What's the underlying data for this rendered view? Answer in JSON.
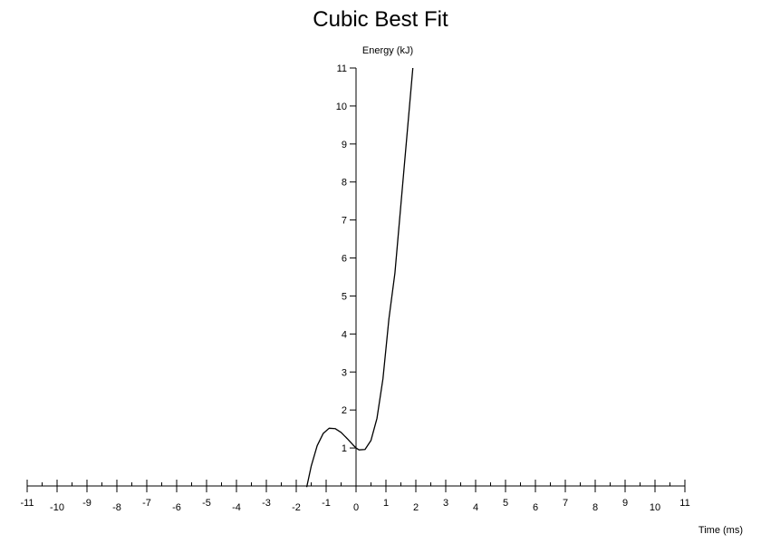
{
  "chart_data": {
    "type": "line",
    "title": "Cubic Best Fit",
    "xlabel": "Time (ms)",
    "ylabel": "Energy (kJ)",
    "xlim": [
      -11,
      11
    ],
    "ylim": [
      0,
      11
    ],
    "x_major_ticks": [
      -11,
      -10,
      -9,
      -8,
      -7,
      -6,
      -5,
      -4,
      -3,
      -2,
      -1,
      0,
      1,
      2,
      3,
      4,
      5,
      6,
      7,
      8,
      9,
      10,
      11
    ],
    "y_major_ticks": [
      1,
      2,
      3,
      4,
      5,
      6,
      7,
      8,
      9,
      10,
      11
    ],
    "x_minor_step": 0.5,
    "grid": false,
    "series": [
      {
        "color": "#000000",
        "x": [
          -1.65,
          -1.5,
          -1.3,
          -1.1,
          -0.9,
          -0.7,
          -0.5,
          -0.3,
          -0.1,
          0.0,
          0.1,
          0.3,
          0.5,
          0.7,
          0.9,
          1.1,
          1.3,
          1.5,
          1.7,
          1.9
        ],
        "y": [
          -0.03,
          0.52,
          1.06,
          1.38,
          1.52,
          1.51,
          1.41,
          1.25,
          1.08,
          1.0,
          0.95,
          0.96,
          1.2,
          1.78,
          2.82,
          4.4,
          5.6,
          7.4,
          9.2,
          11.0
        ]
      }
    ]
  }
}
